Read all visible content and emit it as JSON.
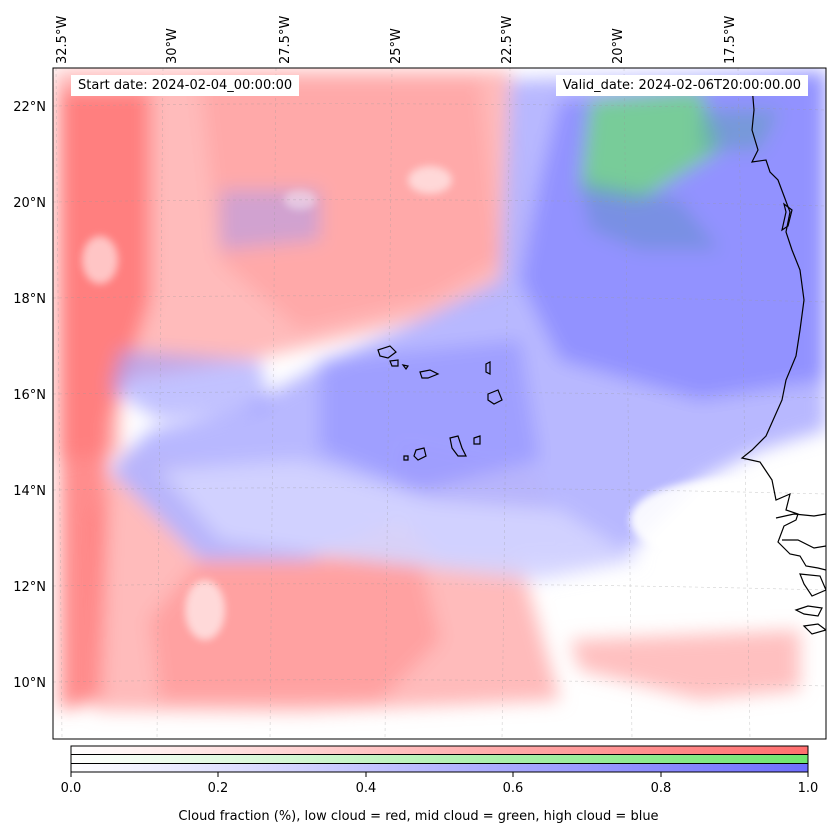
{
  "map": {
    "start_date": "Start date: 2024-02-04_00:00:00",
    "valid_date": "Valid_date: 2024-02-06T20:00:00.00",
    "lon_ticks": [
      "32.5°W",
      "30°W",
      "27.5°W",
      "25°W",
      "22.5°W",
      "20°W",
      "17.5°W"
    ],
    "lat_ticks": [
      "22°N",
      "20°N",
      "18°N",
      "16°N",
      "14°N",
      "12°N",
      "10°N"
    ]
  },
  "colorbar": {
    "ticks": [
      "0.0",
      "0.2",
      "0.4",
      "0.6",
      "0.8",
      "1.0"
    ],
    "label": "Cloud fraction (%), low cloud = red, mid cloud = green, high cloud = blue",
    "colors": {
      "low": "#ff6e6e",
      "mid": "#6ee66e",
      "high": "#6e6eff"
    }
  }
}
